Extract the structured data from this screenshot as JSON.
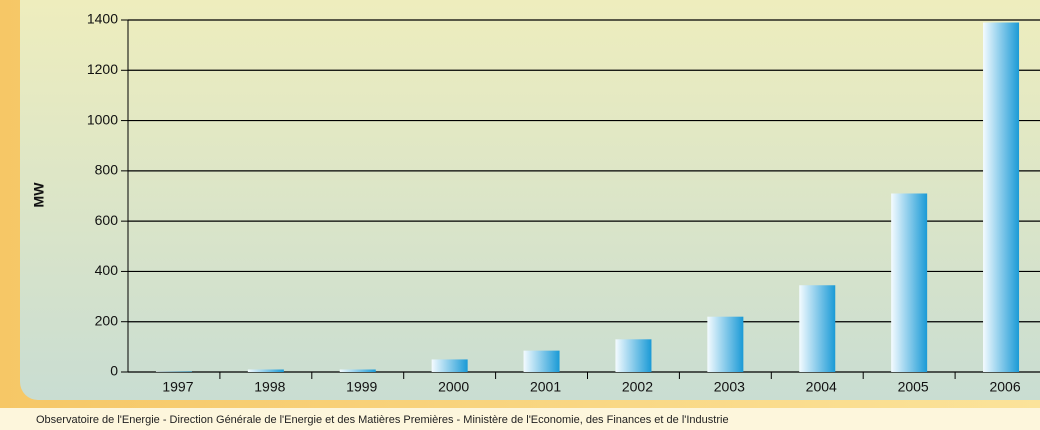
{
  "chart_data": {
    "type": "bar",
    "y_label": "MW",
    "source": "Observatoire de l'Energie - Direction Générale de l'Energie et des Matières Premières - Ministère de l'Economie, des Finances et de l'Industrie",
    "categories": [
      "1997",
      "1998",
      "1999",
      "2000",
      "2001",
      "2002",
      "2003",
      "2004",
      "2005",
      "2006"
    ],
    "values": [
      2,
      10,
      10,
      50,
      85,
      130,
      220,
      345,
      710,
      1390
    ],
    "color": "#1a9ad6",
    "ylim": [
      0,
      1400
    ],
    "yticks": [
      0,
      200,
      400,
      600,
      800,
      1000,
      1200,
      1400
    ],
    "grid": true
  }
}
